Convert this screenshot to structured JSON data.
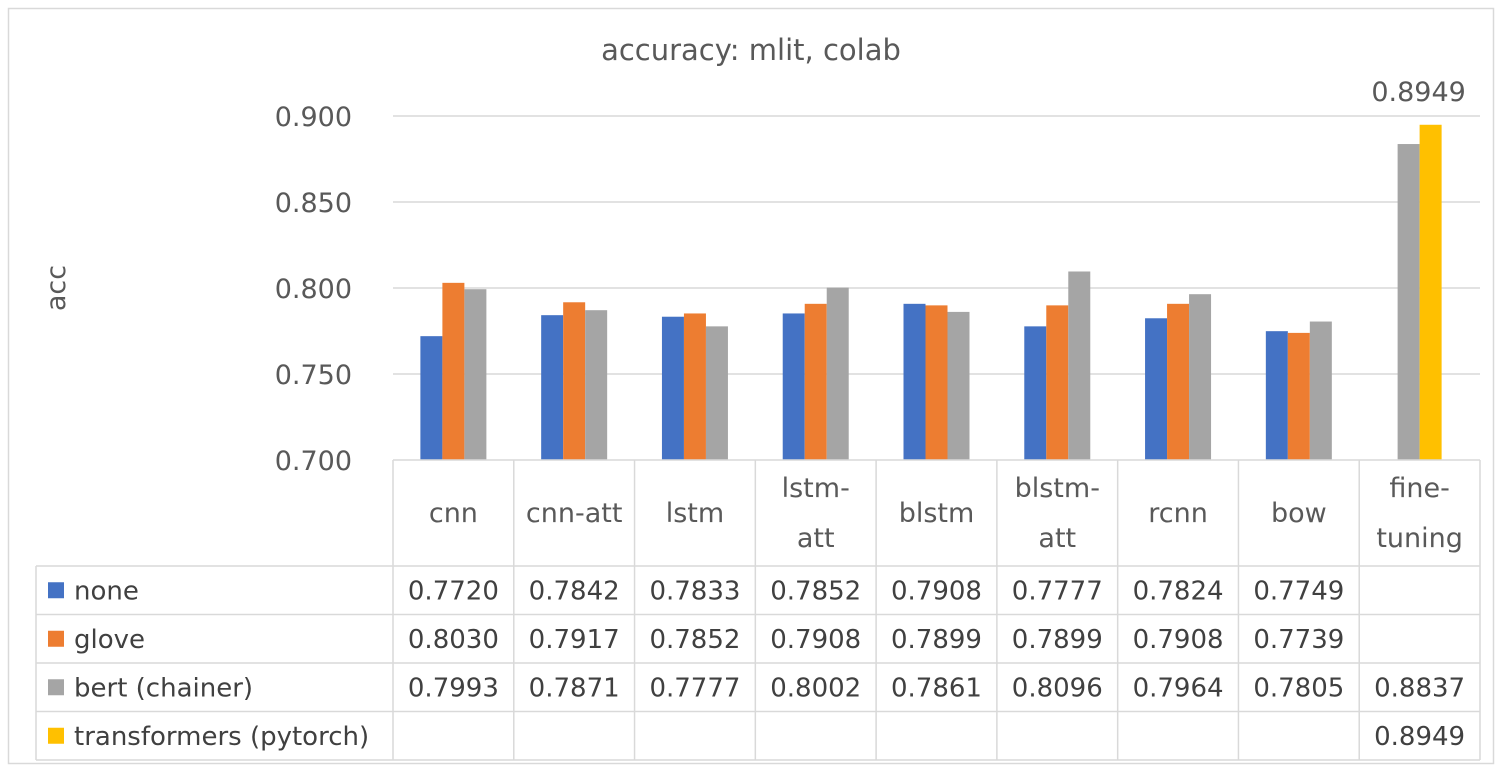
{
  "chart_data": {
    "type": "bar",
    "title": "accuracy: mlit, colab",
    "ylabel": "acc",
    "xlabel": "",
    "ylim": [
      0.7,
      0.9
    ],
    "yticks": [
      "0.700",
      "0.750",
      "0.800",
      "0.850",
      "0.900"
    ],
    "ytick_values": [
      0.7,
      0.75,
      0.8,
      0.85,
      0.9
    ],
    "grid": true,
    "legend": "data-table",
    "categories": [
      [
        "cnn"
      ],
      [
        "cnn-att"
      ],
      [
        "lstm"
      ],
      [
        "lstm-",
        "att"
      ],
      [
        "blstm"
      ],
      [
        "blstm-",
        "att"
      ],
      [
        "rcnn"
      ],
      [
        "bow"
      ],
      [
        "fine-",
        "tuning"
      ]
    ],
    "series": [
      {
        "name": "none",
        "color": "#4472c4",
        "values": [
          0.772,
          0.7842,
          0.7833,
          0.7852,
          0.7908,
          0.7777,
          0.7824,
          0.7749,
          null
        ],
        "labels": [
          "0.7720",
          "0.7842",
          "0.7833",
          "0.7852",
          "0.7908",
          "0.7777",
          "0.7824",
          "0.7749",
          ""
        ]
      },
      {
        "name": "glove",
        "color": "#ed7d31",
        "values": [
          0.803,
          0.7917,
          0.7852,
          0.7908,
          0.7899,
          0.7899,
          0.7908,
          0.7739,
          null
        ],
        "labels": [
          "0.8030",
          "0.7917",
          "0.7852",
          "0.7908",
          "0.7899",
          "0.7899",
          "0.7908",
          "0.7739",
          ""
        ]
      },
      {
        "name": "bert (chainer)",
        "color": "#a5a5a5",
        "values": [
          0.7993,
          0.7871,
          0.7777,
          0.8002,
          0.7861,
          0.8096,
          0.7964,
          0.7805,
          0.8837
        ],
        "labels": [
          "0.7993",
          "0.7871",
          "0.7777",
          "0.8002",
          "0.7861",
          "0.8096",
          "0.7964",
          "0.7805",
          "0.8837"
        ]
      },
      {
        "name": "transformers (pytorch)",
        "color": "#ffc000",
        "values": [
          null,
          null,
          null,
          null,
          null,
          null,
          null,
          null,
          0.8949
        ],
        "labels": [
          "",
          "",
          "",
          "",
          "",
          "",
          "",
          "",
          "0.8949"
        ]
      }
    ],
    "annotations": [
      {
        "series": 3,
        "category": 8,
        "text": "0.8949"
      }
    ]
  }
}
